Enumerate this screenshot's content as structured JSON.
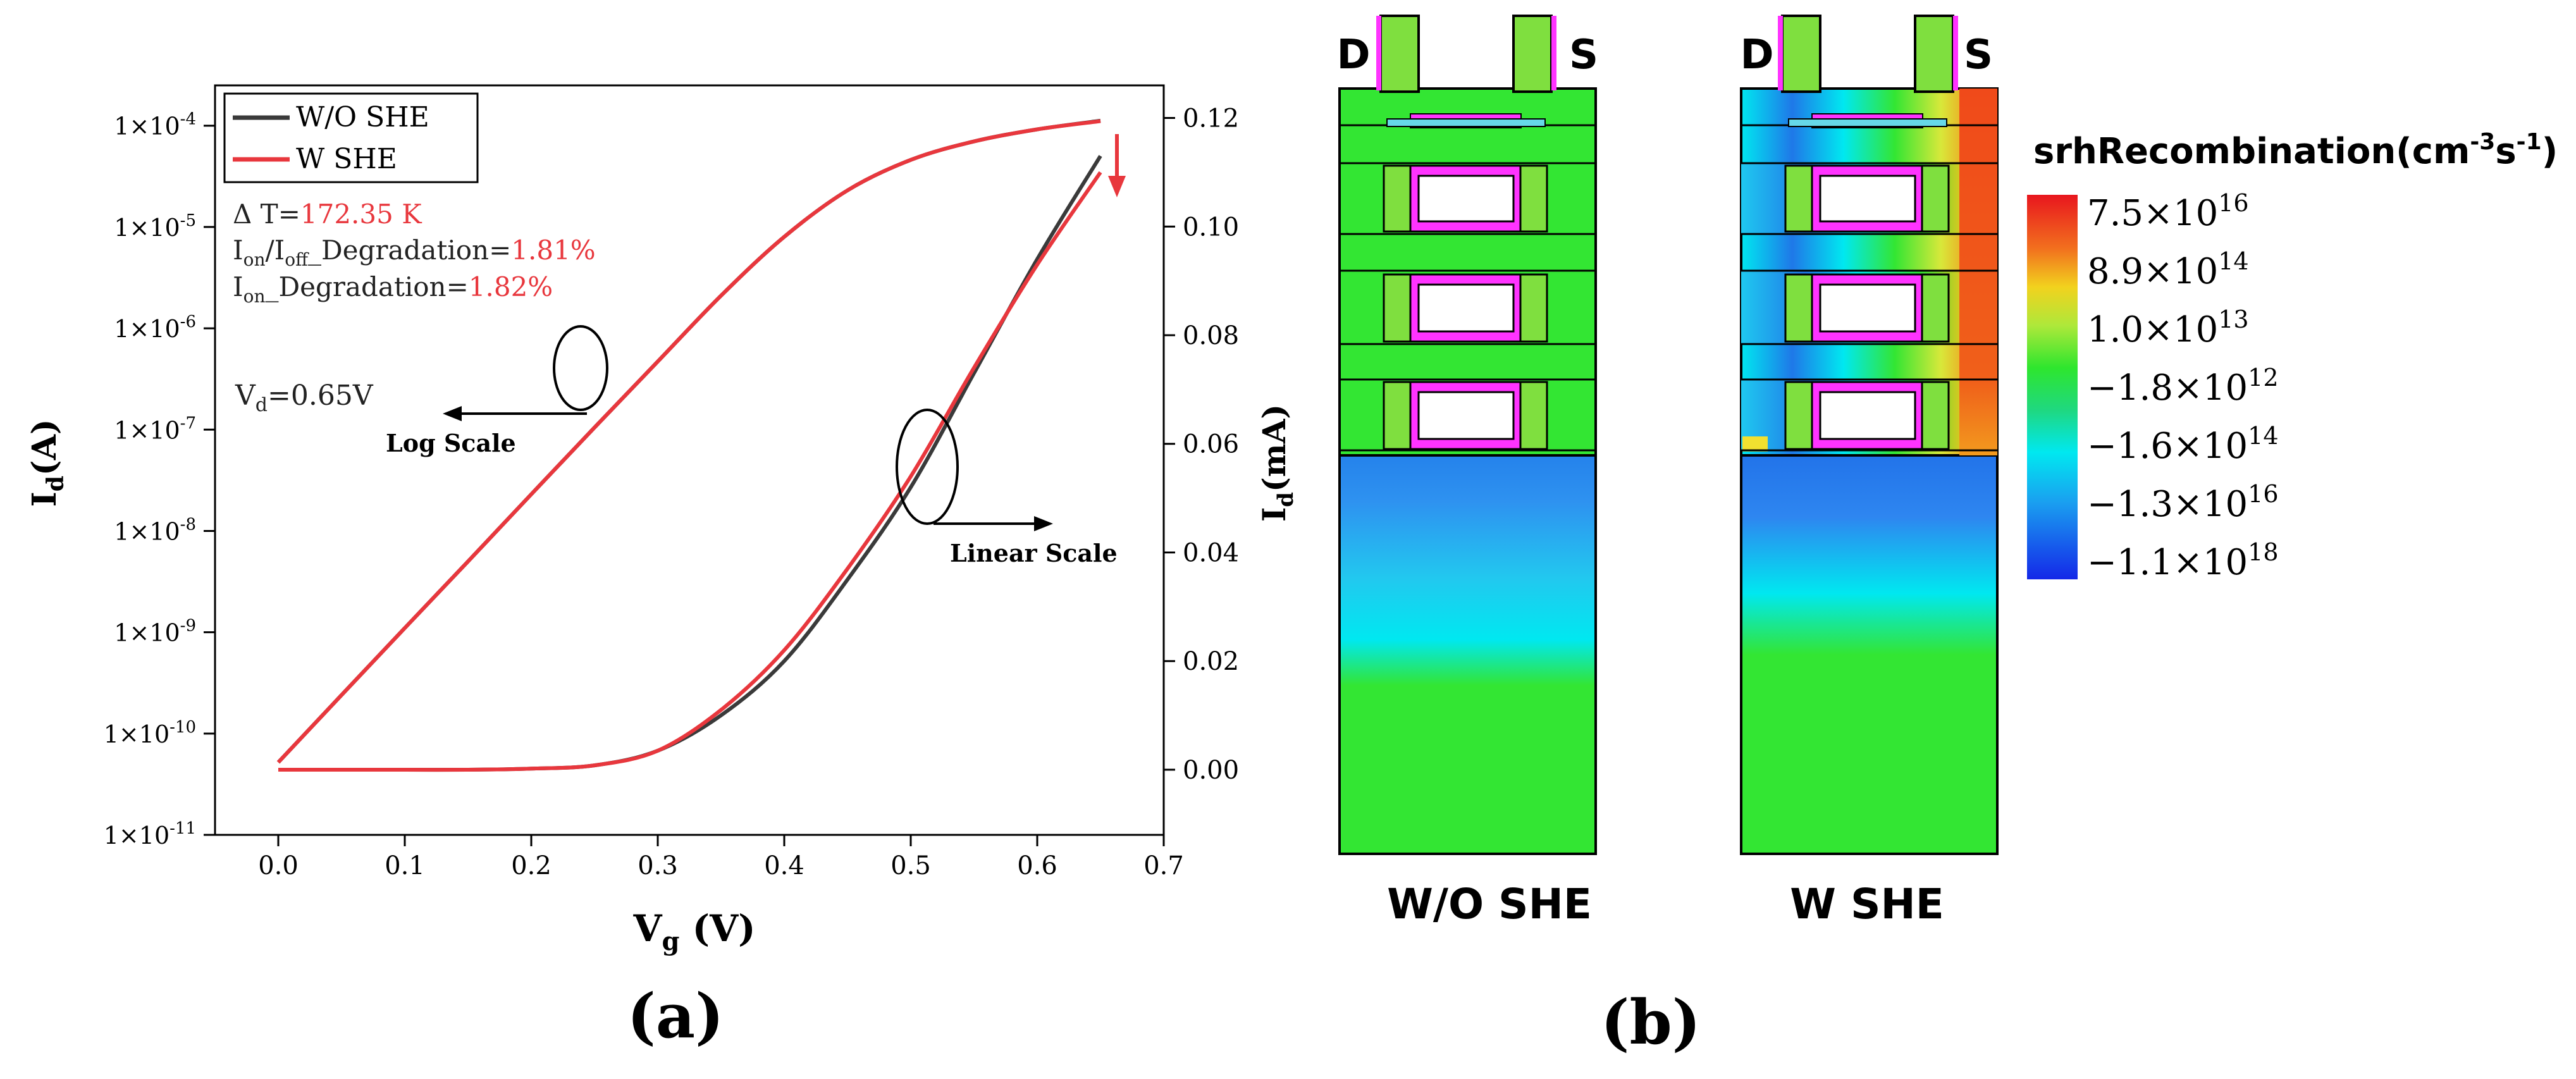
{
  "panel_a": {
    "label": "(a)",
    "legend": [
      {
        "name": "W/O SHE",
        "color": "#3a3a3a"
      },
      {
        "name": "W SHE",
        "color": "#e8373d"
      }
    ],
    "annotations": {
      "delta_t_prefix": "Δ T=",
      "delta_t_value": "172.35 K",
      "ratio_prefix_i": "I",
      "ratio_sub_on": "on",
      "ratio_slash": "/I",
      "ratio_sub_off": "off",
      "ratio_suffix": "_Degradation=",
      "ratio_value": "1.81%",
      "ion_prefix_i": "I",
      "ion_sub_on": "on",
      "ion_suffix": "_Degradation=",
      "ion_value": "1.82%",
      "vd_prefix": "V",
      "vd_sub": "d",
      "vd_value": "=0.65V",
      "log_scale": "Log Scale",
      "linear_scale": "Linear Scale"
    },
    "axes": {
      "left_label_main": "I",
      "left_label_sub": "d",
      "left_label_unit": "(A)",
      "right_label_main": "I",
      "right_label_sub": "d",
      "right_label_unit": "(mA)",
      "x_label_main": "V",
      "x_label_sub": "g",
      "x_label_unit": " (V)"
    },
    "accent_red": "#e8373d",
    "accent_dark": "#3a3a3a"
  },
  "panel_b": {
    "label": "(b)",
    "device_left_caption": "W/O SHE",
    "device_right_caption": "W SHE",
    "terminal_drain": "D",
    "terminal_source": "S",
    "colorbar_title_main": "srhRecombination(cm",
    "colorbar_title_sup1": "-3",
    "colorbar_title_mid": "s",
    "colorbar_title_sup2": "-1",
    "colorbar_title_end": ")",
    "colorbar_ticks": [
      {
        "mant": "7.5×10",
        "exp": "16"
      },
      {
        "mant": "8.9×10",
        "exp": "14"
      },
      {
        "mant": "1.0×10",
        "exp": "13"
      },
      {
        "mant": "−1.8×10",
        "exp": "12"
      },
      {
        "mant": "−1.6×10",
        "exp": "14"
      },
      {
        "mant": "−1.3×10",
        "exp": "16"
      },
      {
        "mant": "−1.1×10",
        "exp": "18"
      }
    ],
    "colors": {
      "green": "#33e633",
      "gate": "#7fdf3f",
      "magenta": "#ff33ff",
      "cyan": "#00e8f0",
      "blue": "#1f78e8",
      "red": "#f03a1a",
      "yellow": "#f0e030"
    }
  },
  "chart_data": {
    "type": "line",
    "x": [
      0.0,
      0.05,
      0.1,
      0.15,
      0.2,
      0.25,
      0.3,
      0.35,
      0.4,
      0.45,
      0.5,
      0.55,
      0.6,
      0.65
    ],
    "xlabel": "Vg (V)",
    "ylabel": "Id(A)",
    "y2label": "Id(mA)",
    "xlim": [
      -0.05,
      0.7
    ],
    "ylim_log": [
      1e-11,
      0.00025
    ],
    "ylim_linear_mA": [
      -0.012,
      0.126
    ],
    "x_ticks": [
      "0.0",
      "0.1",
      "0.2",
      "0.3",
      "0.4",
      "0.5",
      "0.6",
      "0.7"
    ],
    "x_tick_values": [
      0.0,
      0.1,
      0.2,
      0.3,
      0.4,
      0.5,
      0.6,
      0.7
    ],
    "y_left_ticks": [
      {
        "value": 1e-11,
        "mant": "1×10",
        "exp": "-11"
      },
      {
        "value": 1e-10,
        "mant": "1×10",
        "exp": "-10"
      },
      {
        "value": 1e-09,
        "mant": "1×10",
        "exp": "-9"
      },
      {
        "value": 1e-08,
        "mant": "1×10",
        "exp": "-8"
      },
      {
        "value": 1e-07,
        "mant": "1×10",
        "exp": "-7"
      },
      {
        "value": 1e-06,
        "mant": "1×10",
        "exp": "-6"
      },
      {
        "value": 1e-05,
        "mant": "1×10",
        "exp": "-5"
      },
      {
        "value": 0.0001,
        "mant": "1×10",
        "exp": "-4"
      }
    ],
    "y_right_ticks": [
      {
        "value": 0.0,
        "label": "0.00"
      },
      {
        "value": 0.02,
        "label": "0.02"
      },
      {
        "value": 0.04,
        "label": "0.04"
      },
      {
        "value": 0.06,
        "label": "0.06"
      },
      {
        "value": 0.08,
        "label": "0.08"
      },
      {
        "value": 0.1,
        "label": "0.10"
      },
      {
        "value": 0.12,
        "label": "0.12"
      }
    ],
    "series": [
      {
        "name": "W/O SHE (log)",
        "axis": "left",
        "values": [
          5.2e-11,
          2.4e-10,
          1.1e-09,
          5e-09,
          2.3e-08,
          1.05e-07,
          4.7e-07,
          2.1e-06,
          8e-06,
          2.3e-05,
          4.6e-05,
          7e-05,
          9.2e-05,
          0.000112
        ]
      },
      {
        "name": "W SHE (log)",
        "axis": "left",
        "values": [
          5.2e-11,
          2.4e-10,
          1.1e-09,
          5e-09,
          2.3e-08,
          1.05e-07,
          4.7e-07,
          2.1e-06,
          8e-06,
          2.3e-05,
          4.6e-05,
          7e-05,
          9.2e-05,
          0.000111
        ]
      },
      {
        "name": "W/O SHE (linear)",
        "axis": "right",
        "values": [
          0.0,
          0.0,
          0.0,
          0.0,
          0.0002,
          0.0008,
          0.0035,
          0.01,
          0.02,
          0.035,
          0.052,
          0.073,
          0.094,
          0.113
        ]
      },
      {
        "name": "W SHE (linear)",
        "axis": "right",
        "values": [
          0.0,
          0.0,
          0.0,
          0.0,
          0.0002,
          0.0008,
          0.0035,
          0.011,
          0.022,
          0.037,
          0.054,
          0.074,
          0.093,
          0.11
        ]
      }
    ]
  }
}
